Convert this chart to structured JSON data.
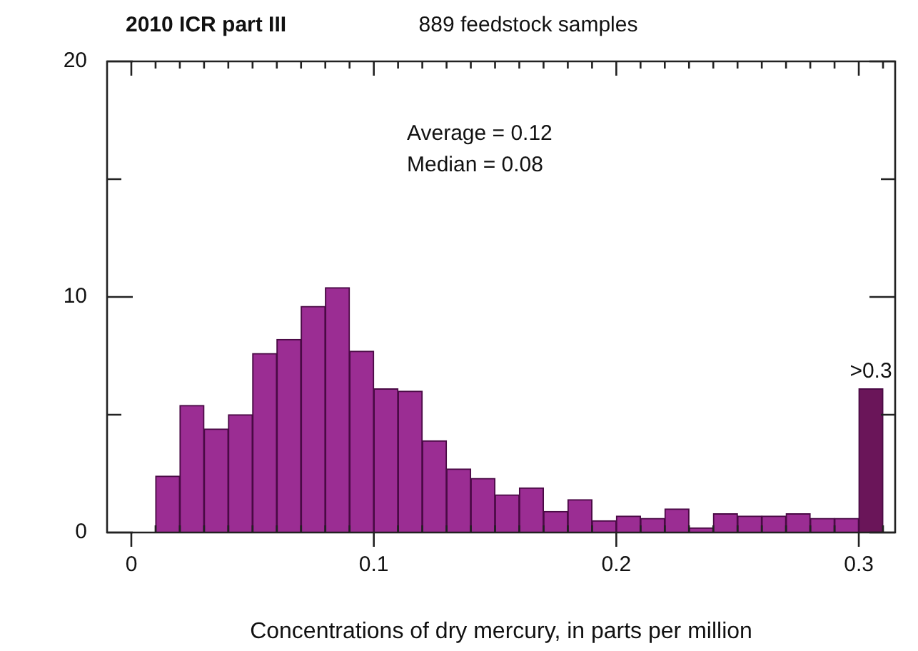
{
  "chart_data": {
    "type": "histogram",
    "title": "2010 ICR part III",
    "subtitle": "889 feedstock samples",
    "xlabel": "Concentrations of dry mercury, in parts per million",
    "bins": [
      0.01,
      0.02,
      0.03,
      0.04,
      0.05,
      0.06,
      0.07,
      0.08,
      0.09,
      0.1,
      0.11,
      0.12,
      0.13,
      0.14,
      0.15,
      0.16,
      0.17,
      0.18,
      0.19,
      0.2,
      0.21,
      0.22,
      0.23,
      0.24,
      0.25,
      0.26,
      0.27,
      0.28,
      0.29,
      0.3,
      0.31
    ],
    "values": [
      2.4,
      5.4,
      4.4,
      5.0,
      7.6,
      8.2,
      9.6,
      10.4,
      7.7,
      6.1,
      6.0,
      3.9,
      2.7,
      2.3,
      1.6,
      1.9,
      0.9,
      1.4,
      0.5,
      0.7,
      0.6,
      1.0,
      0.2,
      0.8,
      0.7,
      0.7,
      0.8,
      0.6,
      0.6,
      6.1
    ],
    "colors": [
      "#9b2d93",
      "#9b2d93",
      "#9b2d93",
      "#9b2d93",
      "#9b2d93",
      "#9b2d93",
      "#9b2d93",
      "#9b2d93",
      "#9b2d93",
      "#9b2d93",
      "#9b2d93",
      "#9b2d93",
      "#9b2d93",
      "#9b2d93",
      "#9b2d93",
      "#9b2d93",
      "#9b2d93",
      "#9b2d93",
      "#9b2d93",
      "#9b2d93",
      "#9b2d93",
      "#9b2d93",
      "#9b2d93",
      "#9b2d93",
      "#9b2d93",
      "#9b2d93",
      "#9b2d93",
      "#9b2d93",
      "#9b2d93",
      "#6a1559"
    ],
    "xlim": [
      -0.01,
      0.315
    ],
    "xticks": [
      0,
      {
        "value": 0.01,
        "label": null
      },
      {
        "value": 0.02,
        "label": null
      },
      {
        "value": 0.03,
        "label": null
      },
      {
        "value": 0.04,
        "label": null
      },
      {
        "value": 0.05,
        "label": null
      },
      {
        "value": 0.06,
        "label": null
      },
      {
        "value": 0.07,
        "label": null
      },
      {
        "value": 0.08,
        "label": null
      },
      {
        "value": 0.09,
        "label": null
      },
      0.1,
      {
        "value": 0.11,
        "label": null
      },
      {
        "value": 0.12,
        "label": null
      },
      {
        "value": 0.13,
        "label": null
      },
      {
        "value": 0.14,
        "label": null
      },
      {
        "value": 0.15,
        "label": null
      },
      {
        "value": 0.16,
        "label": null
      },
      {
        "value": 0.17,
        "label": null
      },
      {
        "value": 0.18,
        "label": null
      },
      {
        "value": 0.19,
        "label": null
      },
      0.2,
      {
        "value": 0.21,
        "label": null
      },
      {
        "value": 0.22,
        "label": null
      },
      {
        "value": 0.23,
        "label": null
      },
      {
        "value": 0.24,
        "label": null
      },
      {
        "value": 0.25,
        "label": null
      },
      {
        "value": 0.26,
        "label": null
      },
      {
        "value": 0.27,
        "label": null
      },
      {
        "value": 0.28,
        "label": null
      },
      {
        "value": 0.29,
        "label": null
      },
      0.3,
      {
        "value": 0.31,
        "label": null
      }
    ],
    "ylim": [
      0,
      20
    ],
    "yticks": [
      0,
      {
        "value": 5,
        "label": null
      },
      10,
      {
        "value": 15,
        "label": null
      },
      20
    ],
    "annotations": [
      "Average = 0.12",
      "Median = 0.08",
      {
        "text": ">0.3",
        "x": 0.305,
        "y": 6.1
      }
    ],
    "grid": false,
    "legend": false
  }
}
